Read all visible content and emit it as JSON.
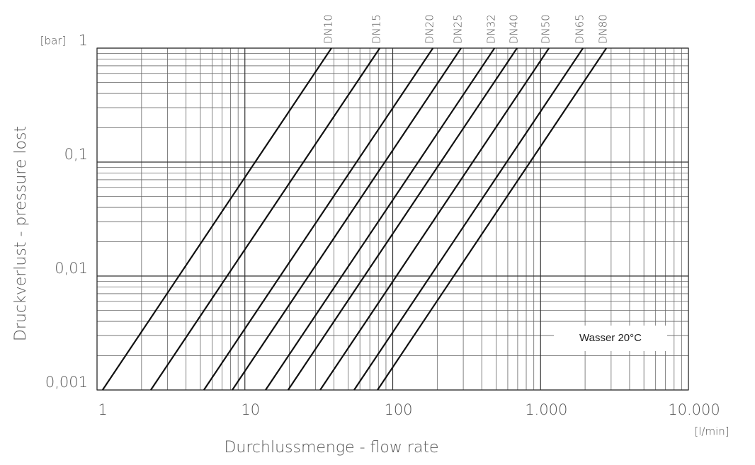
{
  "chart_data": {
    "type": "line",
    "log_x": true,
    "log_y": true,
    "grid": true,
    "xlabel": "Durchlussmenge - flow rate",
    "xunit": "[l/min]",
    "ylabel": "Druckverlust - pressure lost",
    "yunit": "[bar]",
    "annotation": "Wasser 20°C",
    "xlim": [
      1,
      10000
    ],
    "ylim": [
      0.001,
      1
    ],
    "xticks": [
      1,
      10,
      100,
      {
        "value": 1000,
        "label": "1.000"
      },
      {
        "value": 10000,
        "label": "10.000"
      }
    ],
    "yticks": [
      {
        "value": 0.001,
        "label": "0,001"
      },
      {
        "value": 0.01,
        "label": "0,01"
      },
      {
        "value": 0.1,
        "label": "0,1"
      },
      1
    ],
    "xminorticks": [
      2,
      3,
      4,
      5,
      6,
      7,
      8,
      9,
      20,
      30,
      40,
      50,
      60,
      70,
      80,
      90,
      200,
      300,
      400,
      500,
      600,
      700,
      800,
      900,
      2000,
      3000,
      4000,
      5000,
      6000,
      7000,
      8000,
      9000
    ],
    "yminorticks": [
      0.002,
      0.003,
      0.004,
      0.005,
      0.006,
      0.007,
      0.008,
      0.009,
      0.02,
      0.03,
      0.04,
      0.05,
      0.06,
      0.07,
      0.08,
      0.09,
      0.2,
      0.3,
      0.4,
      0.5,
      0.6,
      0.7,
      0.8,
      0.9
    ],
    "series": [
      {
        "name": "DN10",
        "color": "#111111",
        "x": [
          1.09,
          38.5
        ],
        "values": [
          0.001,
          1
        ]
      },
      {
        "name": "DN15",
        "color": "#111111",
        "x": [
          2.31,
          81.7
        ],
        "values": [
          0.001,
          1
        ]
      },
      {
        "name": "DN20",
        "color": "#111111",
        "x": [
          5.28,
          187
        ],
        "values": [
          0.001,
          1
        ]
      },
      {
        "name": "DN25",
        "color": "#111111",
        "x": [
          8.22,
          290
        ],
        "values": [
          0.001,
          1
        ]
      },
      {
        "name": "DN32",
        "color": "#111111",
        "x": [
          13.8,
          488
        ],
        "values": [
          0.001,
          1
        ]
      },
      {
        "name": "DN40",
        "color": "#111111",
        "x": [
          19.6,
          693
        ],
        "values": [
          0.001,
          1
        ]
      },
      {
        "name": "DN50",
        "color": "#111111",
        "x": [
          32.3,
          1140
        ],
        "values": [
          0.001,
          1
        ]
      },
      {
        "name": "DN65",
        "color": "#111111",
        "x": [
          54.8,
          1936
        ],
        "values": [
          0.001,
          1
        ]
      },
      {
        "name": "DN80",
        "color": "#111111",
        "x": [
          78.9,
          2786
        ],
        "values": [
          0.001,
          1
        ]
      }
    ]
  }
}
